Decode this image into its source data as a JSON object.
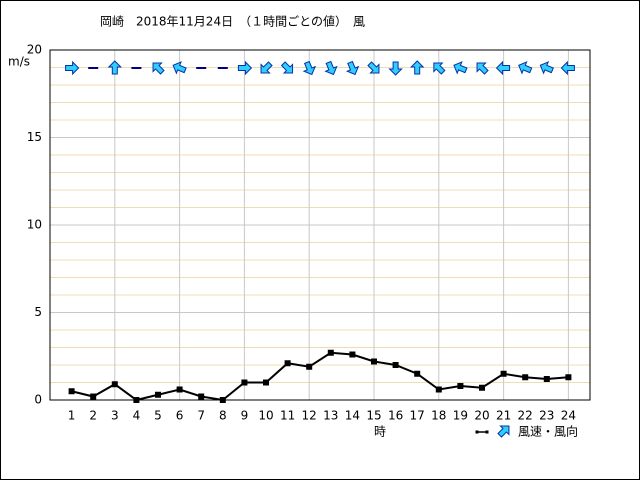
{
  "chart_data": {
    "type": "line",
    "title": "岡崎　2018年11月24日　（１時間ごとの値）　風",
    "y_label": "m/s",
    "x_label": "時",
    "x": [
      1,
      2,
      3,
      4,
      5,
      6,
      7,
      8,
      9,
      10,
      11,
      12,
      13,
      14,
      15,
      16,
      17,
      18,
      19,
      20,
      21,
      22,
      23,
      24
    ],
    "xlim": [
      0,
      25
    ],
    "xticks": [
      1,
      2,
      3,
      4,
      5,
      6,
      7,
      8,
      9,
      10,
      11,
      12,
      13,
      14,
      15,
      16,
      17,
      18,
      19,
      20,
      21,
      22,
      23,
      24
    ],
    "ylim": [
      0,
      20
    ],
    "yticks": [
      0,
      5,
      10,
      15,
      20
    ],
    "grid": true,
    "series": [
      {
        "name": "風速・風向",
        "color": "#000000",
        "values": [
          0.5,
          0.2,
          0.9,
          0.0,
          0.3,
          0.6,
          0.2,
          0.0,
          1.0,
          1.0,
          2.1,
          1.9,
          2.7,
          2.6,
          2.2,
          2.0,
          1.5,
          0.6,
          0.8,
          0.7,
          1.5,
          1.3,
          1.2,
          1.3
        ],
        "arrow_angles": [
          90,
          null,
          0,
          null,
          315,
          292.5,
          null,
          null,
          90,
          225,
          135,
          157.5,
          157.5,
          157.5,
          135,
          180,
          0,
          315,
          292.5,
          315,
          270,
          292.5,
          292.5,
          270
        ],
        "arrow_color": "#33ccff"
      }
    ]
  }
}
